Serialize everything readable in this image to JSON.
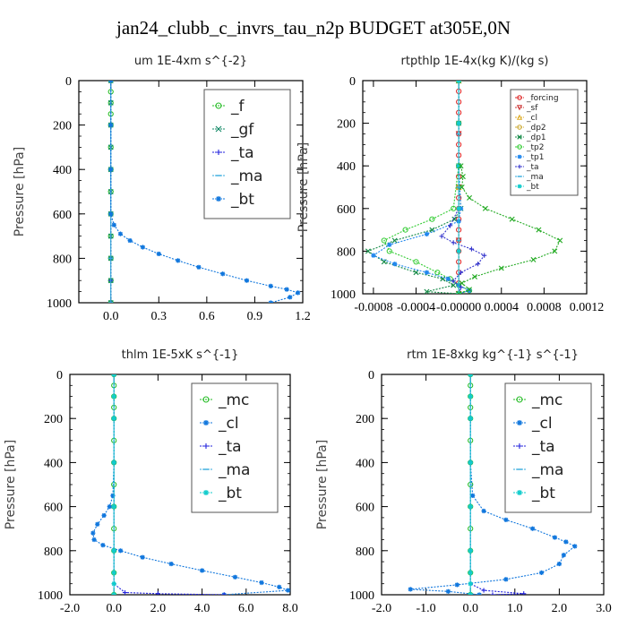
{
  "figure": {
    "title": "jan24_clubb_c_invrs_tau_n2p  BUDGET at305E,0N"
  },
  "chart_data": [
    {
      "type": "line",
      "title": "um  1E-4xm s^{-2}",
      "ylabel": "Pressure [hPa]",
      "xlim": [
        -0.2,
        1.2
      ],
      "ylim": [
        0,
        1000
      ],
      "y_inverted": true,
      "xticks": [
        "0.0",
        "0.3",
        "0.6",
        "0.9",
        "1.2"
      ],
      "xtick_values": [
        0,
        0.3,
        0.6,
        0.9,
        1.2
      ],
      "yticks": [
        "0",
        "200",
        "400",
        "600",
        "800",
        "1000"
      ],
      "legend_position": "top-right",
      "legend_font": 17,
      "series": [
        {
          "name": "_f",
          "color": "#22bb22",
          "marker": "o",
          "x": [
            0,
            0,
            0,
            0,
            0,
            0,
            0,
            0,
            0,
            0,
            0,
            0,
            0
          ],
          "y": [
            0,
            50,
            100,
            150,
            200,
            300,
            400,
            500,
            600,
            700,
            800,
            900,
            1000
          ]
        },
        {
          "name": "_gf",
          "color": "#118866",
          "marker": "x",
          "x": [
            0,
            0,
            0,
            0,
            0,
            0,
            0,
            0,
            0,
            0,
            0
          ],
          "y": [
            0,
            100,
            200,
            300,
            400,
            500,
            600,
            700,
            800,
            900,
            1000
          ]
        },
        {
          "name": "_ta",
          "color": "#2222dd",
          "marker": "+",
          "x": [
            0,
            0,
            0,
            0,
            0,
            0,
            0
          ],
          "y": [
            0,
            200,
            400,
            600,
            800,
            900,
            1000
          ]
        },
        {
          "name": "_ma",
          "color": "#33aadd",
          "marker": "-",
          "x": [
            0,
            0,
            0,
            0,
            0,
            0
          ],
          "y": [
            0,
            200,
            400,
            600,
            800,
            1000
          ]
        },
        {
          "name": "_bt",
          "color": "#1177dd",
          "marker": "*",
          "x": [
            0,
            0,
            0.0,
            0.0,
            0.02,
            0.06,
            0.12,
            0.2,
            0.3,
            0.42,
            0.55,
            0.7,
            0.85,
            1.0,
            1.1,
            1.17,
            1.12,
            1.0
          ],
          "y": [
            0,
            200,
            400,
            600,
            650,
            690,
            720,
            750,
            780,
            810,
            840,
            870,
            900,
            925,
            940,
            955,
            975,
            1000
          ]
        }
      ]
    },
    {
      "type": "line",
      "title": "rtpthlp  1E-4x(kg K)/(kg s)",
      "ylabel": "Pressure [hPa]",
      "xlim": [
        -0.0009,
        0.0012
      ],
      "ylim": [
        0,
        1000
      ],
      "y_inverted": true,
      "xticks": [
        "-0.0008",
        "-0.0004",
        "-0.00000",
        "0.0004",
        "0.0008",
        "0.0012"
      ],
      "xtick_values": [
        -0.0008,
        -0.0004,
        0,
        0.0004,
        0.0008,
        0.0012
      ],
      "yticks": [
        "0",
        "200",
        "400",
        "600",
        "800",
        "1000"
      ],
      "legend_position": "top-right",
      "legend_font": 9,
      "series": [
        {
          "name": "_forcing",
          "color": "#dd2222",
          "marker": "o",
          "x": [
            0,
            0,
            0,
            0,
            0,
            0,
            0,
            0,
            0,
            0,
            0,
            0,
            0,
            0,
            0,
            0,
            0,
            0,
            0,
            0,
            0
          ],
          "y": [
            0,
            50,
            100,
            150,
            200,
            250,
            300,
            350,
            400,
            450,
            500,
            550,
            600,
            650,
            700,
            750,
            800,
            850,
            900,
            950,
            1000
          ]
        },
        {
          "name": "_sf",
          "color": "#cc3333",
          "marker": "v",
          "x": [
            0,
            0,
            0,
            0,
            0
          ],
          "y": [
            0,
            250,
            500,
            750,
            1000
          ]
        },
        {
          "name": "_cl",
          "color": "#ddaa22",
          "marker": "^",
          "x": [
            0,
            0,
            0
          ],
          "y": [
            0,
            500,
            1000
          ]
        },
        {
          "name": "_dp2",
          "color": "#ccaa33",
          "marker": "o",
          "x": [
            0,
            0,
            0
          ],
          "y": [
            0,
            500,
            1000
          ]
        },
        {
          "name": "_dp1",
          "color": "#118844",
          "marker": "x",
          "x": [
            0,
            0,
            0,
            2e-05,
            -4e-05,
            -0.00025,
            -0.0006,
            -0.00085,
            -0.0007,
            -0.0004,
            -0.00015,
            -5e-05,
            -0.0003,
            0
          ],
          "y": [
            0,
            200,
            400,
            600,
            650,
            700,
            750,
            800,
            850,
            900,
            930,
            960,
            990,
            1000
          ]
        },
        {
          "name": "_tp2",
          "color": "#33cc33",
          "marker": "o",
          "x": [
            0,
            0,
            0,
            -5e-05,
            -0.00025,
            -0.0005,
            -0.0007,
            -0.00065,
            -0.0004,
            -0.0002,
            -8e-05,
            0,
            0.0001,
            0
          ],
          "y": [
            0,
            200,
            400,
            600,
            650,
            700,
            750,
            800,
            850,
            900,
            930,
            960,
            985,
            1000
          ]
        },
        {
          "name": "_tp1",
          "color": "#2288ee",
          "marker": "*",
          "x": [
            0,
            0,
            0,
            2e-05,
            0,
            -0.0003,
            -0.00065,
            -0.0008,
            -0.0006,
            -0.0003,
            -0.0001,
            0,
            0.0001,
            0
          ],
          "y": [
            0,
            200,
            400,
            600,
            660,
            720,
            770,
            820,
            860,
            900,
            930,
            960,
            985,
            1000
          ]
        },
        {
          "name": "_ta",
          "color": "#3333cc",
          "marker": "+",
          "x": [
            0,
            0,
            0,
            0,
            -8e-05,
            -0.00016,
            -5e-05,
            0.00012,
            0.00024,
            0.00018,
            2e-05,
            -5e-05,
            2e-05,
            0
          ],
          "y": [
            0,
            200,
            400,
            600,
            680,
            730,
            760,
            790,
            820,
            860,
            900,
            940,
            970,
            1000
          ]
        },
        {
          "name": "_ma",
          "color": "#33aadd",
          "marker": "-",
          "x": [
            0,
            0,
            0,
            0,
            0
          ],
          "y": [
            0,
            250,
            500,
            750,
            1000
          ]
        },
        {
          "name": "_bt",
          "color": "#11cccc",
          "marker": "*",
          "x": [
            0,
            0,
            0,
            0,
            0,
            0
          ],
          "y": [
            0,
            200,
            400,
            600,
            800,
            1000
          ]
        },
        {
          "name": "",
          "color": "#22aa22",
          "marker": "x",
          "x": [
            2e-05,
            4e-05,
            3e-05,
            0.0001,
            0.00025,
            0.0005,
            0.00075,
            0.00095,
            0.0009,
            0.0007,
            0.0004,
            0.00015,
            3e-05,
            0.0001,
            0
          ],
          "y": [
            400,
            450,
            500,
            550,
            600,
            650,
            700,
            750,
            800,
            840,
            880,
            920,
            950,
            980,
            1000
          ]
        }
      ]
    },
    {
      "type": "line",
      "title": "thlm  1E-5xK s^{-1}",
      "ylabel": "Pressure [hPa]",
      "xlim": [
        -2.0,
        8.0
      ],
      "ylim": [
        0,
        1000
      ],
      "y_inverted": true,
      "xticks": [
        "-2.0",
        "0.0",
        "2.0",
        "4.0",
        "6.0",
        "8.0"
      ],
      "xtick_values": [
        -2,
        0,
        2,
        4,
        6,
        8
      ],
      "yticks": [
        "0",
        "200",
        "400",
        "600",
        "800",
        "1000"
      ],
      "legend_position": "top-right",
      "legend_font": 17,
      "series": [
        {
          "name": "_mc",
          "color": "#22bb22",
          "marker": "o",
          "x": [
            0,
            0,
            0,
            0,
            0,
            0,
            0,
            0,
            0,
            0,
            0,
            0,
            0
          ],
          "y": [
            0,
            50,
            100,
            150,
            200,
            300,
            400,
            500,
            600,
            700,
            800,
            900,
            1000
          ]
        },
        {
          "name": "_cl",
          "color": "#1177dd",
          "marker": "*",
          "x": [
            0,
            0,
            0,
            -0.05,
            -0.2,
            -0.45,
            -0.75,
            -0.95,
            -0.9,
            -0.5,
            0.3,
            1.3,
            2.6,
            4.0,
            5.5,
            6.7,
            7.5,
            7.9,
            5.0
          ],
          "y": [
            0,
            200,
            400,
            550,
            600,
            640,
            680,
            720,
            750,
            775,
            800,
            830,
            860,
            890,
            920,
            945,
            965,
            980,
            1000
          ]
        },
        {
          "name": "_ta",
          "color": "#2222dd",
          "marker": "+",
          "x": [
            0,
            0,
            0,
            0,
            0,
            0,
            0.5,
            2.0,
            5.0
          ],
          "y": [
            0,
            200,
            400,
            600,
            800,
            950,
            990,
            995,
            1000
          ]
        },
        {
          "name": "_ma",
          "color": "#33aadd",
          "marker": "-",
          "x": [
            0,
            0,
            0,
            0,
            0,
            0
          ],
          "y": [
            0,
            200,
            400,
            600,
            800,
            1000
          ]
        },
        {
          "name": "_bt",
          "color": "#11cccc",
          "marker": "*",
          "x": [
            0,
            0,
            0,
            0,
            0,
            0,
            0,
            0,
            0
          ],
          "y": [
            0,
            100,
            200,
            400,
            600,
            800,
            900,
            950,
            1000
          ]
        }
      ]
    },
    {
      "type": "line",
      "title": "rtm  1E-8xkg kg^{-1} s^{-1}",
      "ylabel": "Pressure [hPa]",
      "xlim": [
        -2.0,
        3.0
      ],
      "ylim": [
        0,
        1000
      ],
      "y_inverted": true,
      "xticks": [
        "-2.0",
        "-1.0",
        "0.0",
        "1.0",
        "2.0",
        "3.0"
      ],
      "xtick_values": [
        -2,
        -1,
        0,
        1,
        2,
        3
      ],
      "yticks": [
        "0",
        "200",
        "400",
        "600",
        "800",
        "1000"
      ],
      "legend_position": "top-right",
      "legend_font": 17,
      "series": [
        {
          "name": "_mc",
          "color": "#22bb22",
          "marker": "o",
          "x": [
            0,
            0,
            0,
            0,
            0,
            0,
            0,
            0,
            0,
            0,
            0,
            0,
            0
          ],
          "y": [
            0,
            50,
            100,
            150,
            200,
            300,
            400,
            500,
            600,
            700,
            800,
            900,
            1000
          ]
        },
        {
          "name": "_cl",
          "color": "#1177dd",
          "marker": "*",
          "x": [
            0,
            0,
            0,
            0.05,
            0.3,
            0.8,
            1.4,
            1.9,
            2.15,
            2.35,
            2.1,
            2.0,
            1.6,
            0.8,
            -0.3,
            -1.35,
            -0.5,
            0.2
          ],
          "y": [
            0,
            200,
            400,
            550,
            620,
            660,
            700,
            740,
            760,
            780,
            820,
            860,
            900,
            930,
            955,
            975,
            985,
            1000
          ]
        },
        {
          "name": "_ta",
          "color": "#2222dd",
          "marker": "+",
          "x": [
            0,
            0,
            0,
            0,
            0,
            0,
            0.3,
            1.2,
            0.5
          ],
          "y": [
            0,
            200,
            400,
            600,
            800,
            950,
            980,
            995,
            1000
          ]
        },
        {
          "name": "_ma",
          "color": "#33aadd",
          "marker": "-",
          "x": [
            0,
            0,
            0,
            0,
            0,
            0
          ],
          "y": [
            0,
            200,
            400,
            600,
            800,
            1000
          ]
        },
        {
          "name": "_bt",
          "color": "#11cccc",
          "marker": "*",
          "x": [
            0,
            0,
            0,
            0,
            0,
            0,
            0,
            0,
            0
          ],
          "y": [
            0,
            100,
            200,
            400,
            600,
            800,
            900,
            950,
            1000
          ]
        }
      ]
    }
  ]
}
